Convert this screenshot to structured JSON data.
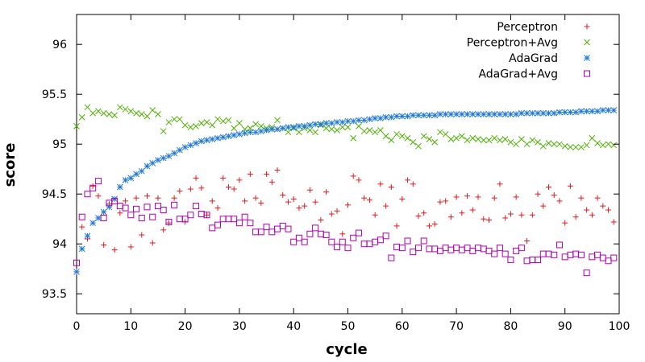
{
  "chart_data": {
    "type": "scatter",
    "title": "",
    "xlabel": "cycle",
    "ylabel": "score",
    "xlim": [
      0,
      100
    ],
    "ylim": [
      93.3,
      96.3
    ],
    "xticks": [
      "0",
      "10",
      "20",
      "30",
      "40",
      "50",
      "60",
      "70",
      "80",
      "90",
      "100"
    ],
    "yticks": [
      "93.5",
      "94",
      "94.5",
      "95",
      "95.5",
      "96"
    ],
    "xtick_values": [
      0,
      10,
      20,
      30,
      40,
      50,
      60,
      70,
      80,
      90,
      100
    ],
    "ytick_values": [
      93.5,
      94,
      94.5,
      95,
      95.5,
      96
    ],
    "grid": false,
    "legend_position": "top-right",
    "series": [
      {
        "name": "Perceptron",
        "marker": "plus",
        "color": "#e41a1c",
        "x": [
          0,
          1,
          2,
          3,
          4,
          5,
          6,
          7,
          8,
          9,
          10,
          11,
          12,
          13,
          14,
          15,
          16,
          17,
          18,
          19,
          20,
          21,
          22,
          23,
          24,
          25,
          26,
          27,
          28,
          29,
          30,
          31,
          32,
          33,
          34,
          35,
          36,
          37,
          38,
          39,
          40,
          41,
          42,
          43,
          44,
          45,
          46,
          47,
          48,
          49,
          50,
          51,
          52,
          53,
          54,
          55,
          56,
          57,
          58,
          59,
          60,
          61,
          62,
          63,
          64,
          65,
          66,
          67,
          68,
          69,
          70,
          71,
          72,
          73,
          74,
          75,
          76,
          77,
          78,
          79,
          80,
          81,
          82,
          83,
          84,
          85,
          86,
          87,
          88,
          89,
          90,
          91,
          92,
          93,
          94,
          95,
          96,
          97,
          98,
          99
        ],
        "y": [
          93.72,
          94.17,
          94.05,
          94.58,
          94.48,
          93.99,
          94.4,
          93.94,
          94.31,
          94.43,
          93.97,
          94.46,
          94.09,
          94.48,
          94.01,
          94.46,
          94.14,
          94.21,
          94.46,
          94.53,
          94.22,
          94.55,
          94.66,
          94.56,
          94.29,
          94.43,
          94.36,
          94.66,
          94.57,
          94.55,
          94.64,
          94.43,
          94.7,
          94.46,
          94.41,
          94.7,
          94.62,
          94.74,
          94.49,
          94.42,
          94.45,
          94.36,
          94.38,
          94.54,
          94.42,
          94.24,
          94.52,
          94.3,
          94.33,
          94.1,
          94.39,
          94.68,
          94.64,
          94.46,
          94.44,
          94.29,
          94.6,
          94.38,
          94.57,
          94.18,
          94.45,
          94.64,
          94.6,
          94.28,
          94.31,
          94.18,
          94.2,
          94.42,
          94.43,
          94.27,
          94.47,
          94.31,
          94.48,
          94.34,
          94.47,
          94.25,
          94.24,
          94.46,
          94.6,
          94.26,
          94.3,
          94.47,
          94.29,
          94.03,
          94.29,
          94.5,
          94.38,
          94.57,
          94.49,
          94.43,
          94.21,
          94.58,
          94.27,
          94.46,
          94.34,
          94.29,
          94.46,
          94.38,
          94.34,
          94.22
        ]
      },
      {
        "name": "Perceptron+Avg",
        "marker": "cross",
        "color": "#4daf00",
        "x": [
          0,
          1,
          2,
          3,
          4,
          5,
          6,
          7,
          8,
          9,
          10,
          11,
          12,
          13,
          14,
          15,
          16,
          17,
          18,
          19,
          20,
          21,
          22,
          23,
          24,
          25,
          26,
          27,
          28,
          29,
          30,
          31,
          32,
          33,
          34,
          35,
          36,
          37,
          38,
          39,
          40,
          41,
          42,
          43,
          44,
          45,
          46,
          47,
          48,
          49,
          50,
          51,
          52,
          53,
          54,
          55,
          56,
          57,
          58,
          59,
          60,
          61,
          62,
          63,
          64,
          65,
          66,
          67,
          68,
          69,
          70,
          71,
          72,
          73,
          74,
          75,
          76,
          77,
          78,
          79,
          80,
          81,
          82,
          83,
          84,
          85,
          86,
          87,
          88,
          89,
          90,
          91,
          92,
          93,
          94,
          95,
          96,
          97,
          98,
          99
        ],
        "y": [
          95.18,
          95.27,
          95.37,
          95.31,
          95.33,
          95.31,
          95.3,
          95.29,
          95.37,
          95.35,
          95.33,
          95.31,
          95.3,
          95.28,
          95.34,
          95.3,
          95.13,
          95.22,
          95.25,
          95.25,
          95.19,
          95.17,
          95.18,
          95.21,
          95.22,
          95.19,
          95.25,
          95.23,
          95.24,
          95.16,
          95.21,
          95.15,
          95.16,
          95.2,
          95.18,
          95.16,
          95.17,
          95.24,
          95.16,
          95.12,
          95.16,
          95.12,
          95.16,
          95.14,
          95.12,
          95.19,
          95.16,
          95.15,
          95.14,
          95.17,
          95.17,
          95.06,
          95.18,
          95.13,
          95.14,
          95.12,
          95.14,
          95.08,
          95.04,
          95.1,
          95.08,
          95.06,
          95.02,
          94.98,
          95.08,
          95.05,
          95.02,
          95.12,
          95.1,
          95.05,
          95.06,
          95.08,
          95.04,
          95.06,
          95.05,
          95.04,
          95.04,
          95.06,
          95.04,
          95.05,
          95.02,
          95.0,
          95.05,
          95.0,
          95.04,
          95.02,
          94.98,
          95.01,
          95.0,
          95.0,
          94.98,
          94.97,
          94.97,
          94.97,
          94.99,
          95.06,
          95.01,
          94.99,
          95.0,
          94.99
        ]
      },
      {
        "name": "AdaGrad",
        "marker": "star",
        "color": "#1f78d4",
        "x": [
          0,
          1,
          2,
          3,
          4,
          5,
          6,
          7,
          8,
          9,
          10,
          11,
          12,
          13,
          14,
          15,
          16,
          17,
          18,
          19,
          20,
          21,
          22,
          23,
          24,
          25,
          26,
          27,
          28,
          29,
          30,
          31,
          32,
          33,
          34,
          35,
          36,
          37,
          38,
          39,
          40,
          41,
          42,
          43,
          44,
          45,
          46,
          47,
          48,
          49,
          50,
          51,
          52,
          53,
          54,
          55,
          56,
          57,
          58,
          59,
          60,
          61,
          62,
          63,
          64,
          65,
          66,
          67,
          68,
          69,
          70,
          71,
          72,
          73,
          74,
          75,
          76,
          77,
          78,
          79,
          80,
          81,
          82,
          83,
          84,
          85,
          86,
          87,
          88,
          89,
          90,
          91,
          92,
          93,
          94,
          95,
          96,
          97,
          98,
          99
        ],
        "y": [
          93.72,
          93.95,
          94.08,
          94.21,
          94.26,
          94.32,
          94.37,
          94.45,
          94.57,
          94.64,
          94.66,
          94.7,
          94.73,
          94.78,
          94.81,
          94.84,
          94.86,
          94.88,
          94.91,
          94.94,
          94.97,
          94.99,
          95.01,
          95.03,
          95.04,
          95.05,
          95.06,
          95.07,
          95.08,
          95.09,
          95.1,
          95.11,
          95.12,
          95.12,
          95.13,
          95.14,
          95.15,
          95.15,
          95.16,
          95.17,
          95.17,
          95.18,
          95.18,
          95.19,
          95.2,
          95.2,
          95.21,
          95.21,
          95.22,
          95.22,
          95.23,
          95.23,
          95.24,
          95.24,
          95.25,
          95.26,
          95.26,
          95.27,
          95.27,
          95.28,
          95.28,
          95.28,
          95.29,
          95.29,
          95.29,
          95.29,
          95.29,
          95.3,
          95.3,
          95.3,
          95.3,
          95.3,
          95.3,
          95.3,
          95.3,
          95.3,
          95.3,
          95.3,
          95.3,
          95.3,
          95.3,
          95.3,
          95.31,
          95.31,
          95.31,
          95.31,
          95.31,
          95.31,
          95.31,
          95.32,
          95.32,
          95.32,
          95.32,
          95.33,
          95.33,
          95.33,
          95.33,
          95.34,
          95.34,
          95.34
        ]
      },
      {
        "name": "AdaGrad+Avg",
        "marker": "square",
        "color": "#b000b0",
        "x": [
          0,
          1,
          2,
          3,
          4,
          5,
          6,
          7,
          8,
          9,
          10,
          11,
          12,
          13,
          14,
          15,
          16,
          17,
          18,
          19,
          20,
          21,
          22,
          23,
          24,
          25,
          26,
          27,
          28,
          29,
          30,
          31,
          32,
          33,
          34,
          35,
          36,
          37,
          38,
          39,
          40,
          41,
          42,
          43,
          44,
          45,
          46,
          47,
          48,
          49,
          50,
          51,
          52,
          53,
          54,
          55,
          56,
          57,
          58,
          59,
          60,
          61,
          62,
          63,
          64,
          65,
          66,
          67,
          68,
          69,
          70,
          71,
          72,
          73,
          74,
          75,
          76,
          77,
          78,
          79,
          80,
          81,
          82,
          83,
          84,
          85,
          86,
          87,
          88,
          89,
          90,
          91,
          92,
          93,
          94,
          95,
          96,
          97,
          98,
          99
        ],
        "y": [
          93.81,
          94.27,
          94.5,
          94.56,
          94.63,
          94.26,
          94.41,
          94.43,
          94.38,
          94.36,
          94.29,
          94.35,
          94.26,
          94.37,
          94.27,
          94.38,
          94.34,
          94.22,
          94.39,
          94.25,
          94.25,
          94.29,
          94.38,
          94.3,
          94.29,
          94.16,
          94.19,
          94.25,
          94.25,
          94.25,
          94.21,
          94.27,
          94.21,
          94.12,
          94.12,
          94.17,
          94.12,
          94.15,
          94.18,
          94.15,
          94.02,
          94.06,
          94.02,
          94.1,
          94.16,
          94.1,
          94.09,
          94.02,
          93.97,
          94.02,
          93.96,
          94.06,
          94.11,
          94.0,
          94.0,
          94.02,
          94.04,
          94.08,
          93.86,
          93.97,
          93.96,
          94.03,
          93.92,
          93.96,
          94.03,
          93.95,
          93.95,
          93.93,
          93.96,
          93.94,
          93.96,
          93.94,
          93.96,
          93.93,
          93.96,
          93.95,
          93.93,
          93.9,
          93.96,
          93.9,
          93.84,
          93.93,
          93.96,
          93.83,
          93.84,
          93.84,
          93.9,
          93.9,
          93.89,
          93.99,
          93.87,
          93.89,
          93.9,
          93.89,
          93.71,
          93.87,
          93.89,
          93.86,
          93.83,
          93.86
        ]
      }
    ]
  }
}
